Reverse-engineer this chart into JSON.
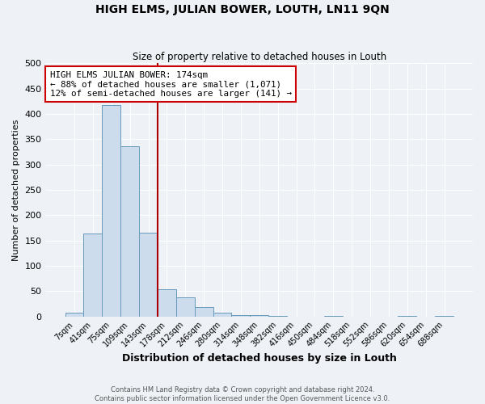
{
  "title": "HIGH ELMS, JULIAN BOWER, LOUTH, LN11 9QN",
  "subtitle": "Size of property relative to detached houses in Louth",
  "xlabel": "Distribution of detached houses by size in Louth",
  "ylabel": "Number of detached properties",
  "bin_labels": [
    "7sqm",
    "41sqm",
    "75sqm",
    "109sqm",
    "143sqm",
    "178sqm",
    "212sqm",
    "246sqm",
    "280sqm",
    "314sqm",
    "348sqm",
    "382sqm",
    "416sqm",
    "450sqm",
    "484sqm",
    "518sqm",
    "552sqm",
    "586sqm",
    "620sqm",
    "654sqm",
    "688sqm"
  ],
  "bar_heights": [
    8,
    163,
    418,
    336,
    166,
    54,
    38,
    19,
    7,
    2,
    2,
    1,
    0,
    0,
    1,
    0,
    0,
    0,
    1,
    0,
    1
  ],
  "bar_color": "#ccdcec",
  "bar_edge_color": "#6699bb",
  "vline_color": "#aa0000",
  "annotation_title": "HIGH ELMS JULIAN BOWER: 174sqm",
  "annotation_line1": "← 88% of detached houses are smaller (1,071)",
  "annotation_line2": "12% of semi-detached houses are larger (141) →",
  "annotation_box_color": "#ffffff",
  "annotation_box_edge": "#cc0000",
  "ylim": [
    0,
    500
  ],
  "yticks": [
    0,
    50,
    100,
    150,
    200,
    250,
    300,
    350,
    400,
    450,
    500
  ],
  "footer1": "Contains HM Land Registry data © Crown copyright and database right 2024.",
  "footer2": "Contains public sector information licensed under the Open Government Licence v3.0.",
  "background_color": "#eef2f7",
  "grid_color": "#ffffff"
}
